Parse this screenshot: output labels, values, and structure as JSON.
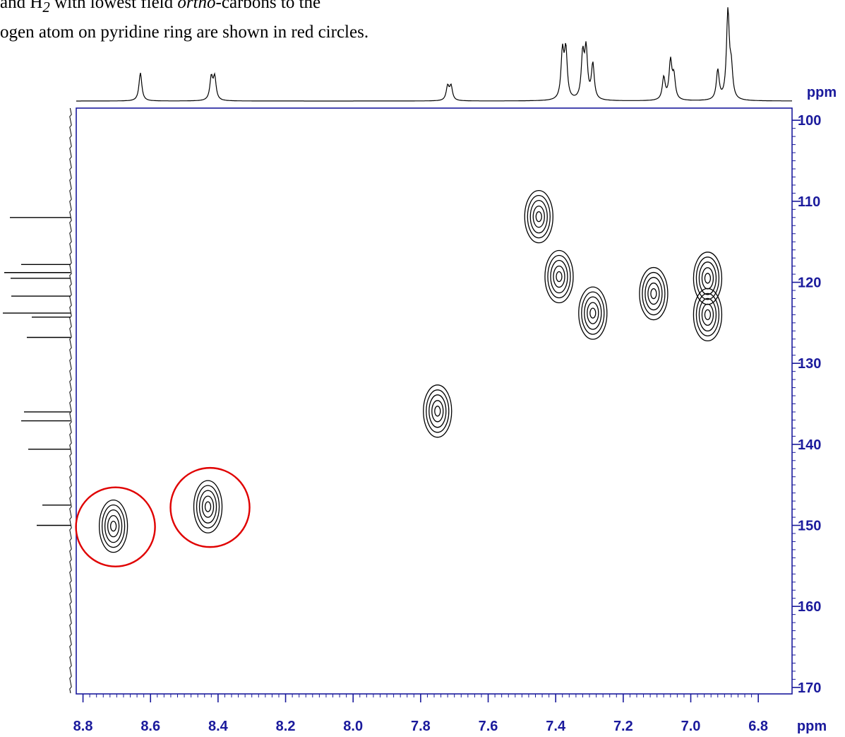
{
  "caption": {
    "line1_pre": "and H",
    "line1_sub": "2",
    "line1_mid": " with lowest field ",
    "line1_italic": "ortho",
    "line1_post": "-carbons to the",
    "line2": "ogen atom on pyridine ring are shown in red circles."
  },
  "chart_data": {
    "type": "heatmap",
    "subtype": "2D NMR HSQC contour plot",
    "xlabel": "ppm",
    "ylabel": "ppm",
    "xlim": [
      8.82,
      6.7
    ],
    "ylim": [
      98.5,
      170.8
    ],
    "x_reversed": true,
    "x_ticks": [
      8.8,
      8.6,
      8.4,
      8.2,
      8.0,
      7.8,
      7.6,
      7.4,
      7.2,
      7.0,
      6.8
    ],
    "x_tick_labels": [
      "8.8",
      "8.6",
      "8.4",
      "8.2",
      "8.0",
      "7.8",
      "7.6",
      "7.4",
      "7.2",
      "7.0",
      "6.8"
    ],
    "y_ticks": [
      100,
      110,
      120,
      130,
      140,
      150,
      160,
      170
    ],
    "y_tick_labels": [
      "100",
      "110",
      "120",
      "130",
      "140",
      "150",
      "160",
      "170"
    ],
    "axis_color": "#1a1a9c",
    "highlight_color": "#e00000",
    "grid": false,
    "cross_peaks": [
      {
        "h": 8.71,
        "c": 150.1,
        "highlighted": true
      },
      {
        "h": 8.43,
        "c": 147.7,
        "highlighted": true
      },
      {
        "h": 7.75,
        "c": 135.9,
        "highlighted": false
      },
      {
        "h": 7.45,
        "c": 111.9,
        "highlighted": false
      },
      {
        "h": 7.39,
        "c": 119.3,
        "highlighted": false
      },
      {
        "h": 7.29,
        "c": 123.8,
        "highlighted": false
      },
      {
        "h": 7.11,
        "c": 121.4,
        "highlighted": false
      },
      {
        "h": 6.95,
        "c": 119.5,
        "highlighted": false
      },
      {
        "h": 6.95,
        "c": 124.0,
        "highlighted": false
      }
    ],
    "proton_peaks_ppm": [
      8.63,
      8.42,
      8.41,
      7.72,
      7.71,
      7.38,
      7.37,
      7.32,
      7.31,
      7.29,
      7.08,
      7.06,
      7.05,
      6.92,
      6.89,
      6.88
    ],
    "carbon_peaks_ppm": [
      112.0,
      117.8,
      118.8,
      119.5,
      121.7,
      123.8,
      124.3,
      126.8,
      136.0,
      137.1,
      140.6,
      147.5,
      150.0
    ]
  }
}
